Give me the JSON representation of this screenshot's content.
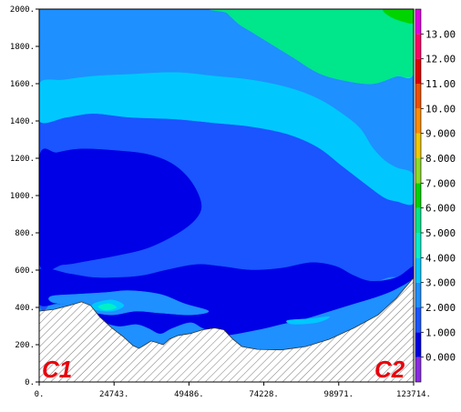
{
  "chart_data": {
    "type": "heatmap",
    "title": "",
    "xlabel": "",
    "ylabel": "",
    "xlim": [
      0,
      123714
    ],
    "ylim": [
      0,
      2000
    ],
    "x_ticks": [
      {
        "value": 0,
        "label": "0."
      },
      {
        "value": 24743,
        "label": "24743."
      },
      {
        "value": 49486,
        "label": "49486."
      },
      {
        "value": 74228,
        "label": "74228."
      },
      {
        "value": 98971,
        "label": "98971."
      },
      {
        "value": 123714,
        "label": "123714."
      }
    ],
    "y_ticks": [
      {
        "value": 0,
        "label": "0."
      },
      {
        "value": 200,
        "label": "200."
      },
      {
        "value": 400,
        "label": "400."
      },
      {
        "value": 600,
        "label": "600."
      },
      {
        "value": 800,
        "label": "800."
      },
      {
        "value": 1000,
        "label": "1000."
      },
      {
        "value": 1200,
        "label": "1200."
      },
      {
        "value": 1400,
        "label": "1400."
      },
      {
        "value": 1600,
        "label": "1600."
      },
      {
        "value": 1800,
        "label": "1800."
      },
      {
        "value": 2000,
        "label": "2000."
      }
    ],
    "colorbar": {
      "range": [
        -1,
        14
      ],
      "levels": [
        {
          "from": -1,
          "to": 0,
          "color": "#8a2be2"
        },
        {
          "from": 0,
          "to": 1,
          "color": "#0000e6"
        },
        {
          "from": 1,
          "to": 2,
          "color": "#1a55ff"
        },
        {
          "from": 2,
          "to": 3,
          "color": "#1e90ff"
        },
        {
          "from": 3,
          "to": 4,
          "color": "#00c8ff"
        },
        {
          "from": 4,
          "to": 5,
          "color": "#00f0c8"
        },
        {
          "from": 5,
          "to": 6,
          "color": "#00e68a"
        },
        {
          "from": 6,
          "to": 7,
          "color": "#00d400"
        },
        {
          "from": 7,
          "to": 8,
          "color": "#8cdc28"
        },
        {
          "from": 8,
          "to": 9,
          "color": "#f0c800"
        },
        {
          "from": 9,
          "to": 10,
          "color": "#ff8c00"
        },
        {
          "from": 10,
          "to": 11,
          "color": "#f05000"
        },
        {
          "from": 11,
          "to": 12,
          "color": "#e00000"
        },
        {
          "from": 12,
          "to": 13,
          "color": "#ff0066"
        },
        {
          "from": 13,
          "to": 14,
          "color": "#e000e0"
        }
      ],
      "tick_labels": [
        {
          "value": 0,
          "label": "0.000"
        },
        {
          "value": 1,
          "label": "1.000"
        },
        {
          "value": 2,
          "label": "2.000"
        },
        {
          "value": 3,
          "label": "3.000"
        },
        {
          "value": 4,
          "label": "4.000"
        },
        {
          "value": 5,
          "label": "5.000"
        },
        {
          "value": 6,
          "label": "6.000"
        },
        {
          "value": 7,
          "label": "7.000"
        },
        {
          "value": 8,
          "label": "8.000"
        },
        {
          "value": 9,
          "label": "9.000"
        },
        {
          "value": 10,
          "label": "10.00"
        },
        {
          "value": 11,
          "label": "11.00"
        },
        {
          "value": 12,
          "label": "12.00"
        },
        {
          "value": 13,
          "label": "13.00"
        }
      ]
    },
    "fill_bands": [
      {
        "name": "level-1-2",
        "color": "#1a55ff",
        "points": [
          [
            0,
            1400
          ],
          [
            9000,
            1420
          ],
          [
            18000,
            1440
          ],
          [
            30000,
            1420
          ],
          [
            45000,
            1410
          ],
          [
            58000,
            1390
          ],
          [
            70000,
            1370
          ],
          [
            82000,
            1330
          ],
          [
            92000,
            1260
          ],
          [
            100000,
            1160
          ],
          [
            108000,
            1060
          ],
          [
            114000,
            990
          ],
          [
            118000,
            970
          ],
          [
            123714,
            960
          ],
          [
            123714,
            600
          ],
          [
            115000,
            560
          ],
          [
            105000,
            500
          ],
          [
            95000,
            460
          ],
          [
            85000,
            440
          ],
          [
            75000,
            400
          ],
          [
            65000,
            380
          ],
          [
            58000,
            400
          ],
          [
            50000,
            420
          ],
          [
            45000,
            450
          ],
          [
            40000,
            440
          ],
          [
            35000,
            420
          ],
          [
            30000,
            400
          ],
          [
            25000,
            420
          ],
          [
            20000,
            440
          ],
          [
            15000,
            450
          ],
          [
            10000,
            440
          ],
          [
            5000,
            450
          ],
          [
            0,
            450
          ]
        ]
      },
      {
        "name": "level-3-4",
        "color": "#00c8ff",
        "points": [
          [
            0,
            1600
          ],
          [
            8000,
            1620
          ],
          [
            18000,
            1640
          ],
          [
            30000,
            1650
          ],
          [
            45000,
            1660
          ],
          [
            58000,
            1640
          ],
          [
            70000,
            1620
          ],
          [
            82000,
            1580
          ],
          [
            92000,
            1520
          ],
          [
            100000,
            1440
          ],
          [
            106000,
            1360
          ],
          [
            110000,
            1260
          ],
          [
            114000,
            1190
          ],
          [
            118000,
            1150
          ],
          [
            123714,
            1110
          ],
          [
            123714,
            960
          ],
          [
            118000,
            970
          ],
          [
            114000,
            990
          ],
          [
            108000,
            1060
          ],
          [
            100000,
            1160
          ],
          [
            92000,
            1260
          ],
          [
            82000,
            1330
          ],
          [
            70000,
            1370
          ],
          [
            58000,
            1390
          ],
          [
            45000,
            1410
          ],
          [
            30000,
            1420
          ],
          [
            18000,
            1440
          ],
          [
            9000,
            1420
          ],
          [
            0,
            1400
          ]
        ]
      },
      {
        "name": "level-4-5",
        "color": "#00f0c8",
        "points": [
          [
            0,
            2000
          ],
          [
            123714,
            2000
          ],
          [
            123714,
            1660
          ],
          [
            118000,
            1640
          ],
          [
            110000,
            1600
          ],
          [
            100000,
            1620
          ],
          [
            92000,
            1660
          ],
          [
            84000,
            1740
          ],
          [
            76000,
            1820
          ],
          [
            70000,
            1880
          ],
          [
            66000,
            1920
          ],
          [
            62000,
            1980
          ],
          [
            60000,
            2000
          ],
          [
            0,
            2000
          ]
        ]
      },
      {
        "name": "level-5-6",
        "color": "#00e68a",
        "points": [
          [
            60000,
            2000
          ],
          [
            62000,
            1980
          ],
          [
            66000,
            1920
          ],
          [
            70000,
            1880
          ],
          [
            76000,
            1820
          ],
          [
            84000,
            1740
          ],
          [
            92000,
            1660
          ],
          [
            100000,
            1620
          ],
          [
            110000,
            1600
          ],
          [
            118000,
            1640
          ],
          [
            123714,
            1660
          ],
          [
            123714,
            1930
          ],
          [
            121000,
            1930
          ],
          [
            116000,
            1960
          ],
          [
            114000,
            2000
          ]
        ]
      },
      {
        "name": "level-6-7",
        "color": "#00d400",
        "points": [
          [
            114000,
            2000
          ],
          [
            116000,
            1960
          ],
          [
            121000,
            1930
          ],
          [
            123714,
            1930
          ],
          [
            123714,
            2000
          ]
        ]
      },
      {
        "name": "core-level-0-1",
        "color": "#0000e6",
        "points": [
          [
            0,
            1200
          ],
          [
            6000,
            1230
          ],
          [
            14000,
            1250
          ],
          [
            26000,
            1240
          ],
          [
            36000,
            1220
          ],
          [
            44000,
            1170
          ],
          [
            50000,
            1080
          ],
          [
            53500,
            960
          ],
          [
            52000,
            880
          ],
          [
            46000,
            800
          ],
          [
            36000,
            720
          ],
          [
            26000,
            680
          ],
          [
            16000,
            650
          ],
          [
            8000,
            630
          ],
          [
            0,
            640
          ]
        ]
      },
      {
        "name": "lower-level-0-1",
        "color": "#0000e6",
        "points": [
          [
            0,
            600
          ],
          [
            10000,
            580
          ],
          [
            18000,
            560
          ],
          [
            26000,
            560
          ],
          [
            34000,
            570
          ],
          [
            42000,
            600
          ],
          [
            52000,
            630
          ],
          [
            60000,
            620
          ],
          [
            70000,
            600
          ],
          [
            80000,
            610
          ],
          [
            90000,
            640
          ],
          [
            98000,
            620
          ],
          [
            104000,
            570
          ],
          [
            110000,
            540
          ],
          [
            118000,
            560
          ],
          [
            123714,
            620
          ],
          [
            123714,
            560
          ],
          [
            118000,
            500
          ],
          [
            112000,
            460
          ],
          [
            104000,
            420
          ],
          [
            96000,
            380
          ],
          [
            88000,
            340
          ],
          [
            80000,
            310
          ],
          [
            72000,
            280
          ],
          [
            60000,
            250
          ],
          [
            54000,
            290
          ],
          [
            50000,
            320
          ],
          [
            44000,
            290
          ],
          [
            40000,
            260
          ],
          [
            36000,
            290
          ],
          [
            32000,
            310
          ],
          [
            26000,
            300
          ],
          [
            20000,
            330
          ],
          [
            14000,
            380
          ],
          [
            10000,
            410
          ],
          [
            6000,
            420
          ],
          [
            0,
            420
          ]
        ]
      },
      {
        "name": "pocket-level-2-3",
        "color": "#1e90ff",
        "points": [
          [
            4000,
            460
          ],
          [
            12000,
            470
          ],
          [
            22000,
            480
          ],
          [
            30000,
            490
          ],
          [
            40000,
            470
          ],
          [
            48000,
            420
          ],
          [
            56000,
            380
          ],
          [
            50000,
            360
          ],
          [
            40000,
            370
          ],
          [
            32000,
            380
          ],
          [
            24000,
            360
          ],
          [
            16000,
            380
          ],
          [
            10000,
            410
          ],
          [
            4000,
            430
          ]
        ]
      },
      {
        "name": "pocket-level-3-4",
        "color": "#00c8ff",
        "points": [
          [
            18000,
            420
          ],
          [
            24000,
            440
          ],
          [
            28000,
            410
          ],
          [
            24000,
            380
          ],
          [
            18000,
            390
          ]
        ]
      },
      {
        "name": "pocket-level-3-4-right",
        "color": "#00c8ff",
        "points": [
          [
            82000,
            330
          ],
          [
            90000,
            340
          ],
          [
            96000,
            350
          ],
          [
            92000,
            320
          ],
          [
            84000,
            310
          ]
        ]
      },
      {
        "name": "pocket-level-4-5",
        "color": "#00f0c8",
        "points": [
          [
            19500,
            405
          ],
          [
            23000,
            420
          ],
          [
            25500,
            400
          ],
          [
            22000,
            385
          ]
        ]
      }
    ],
    "terrain": [
      [
        0,
        380
      ],
      [
        5000,
        390
      ],
      [
        10000,
        410
      ],
      [
        14000,
        430
      ],
      [
        17000,
        410
      ],
      [
        20000,
        350
      ],
      [
        24000,
        290
      ],
      [
        28000,
        240
      ],
      [
        31000,
        195
      ],
      [
        33000,
        180
      ],
      [
        35000,
        200
      ],
      [
        37000,
        220
      ],
      [
        39000,
        210
      ],
      [
        41000,
        200
      ],
      [
        43000,
        230
      ],
      [
        46000,
        250
      ],
      [
        50000,
        260
      ],
      [
        54000,
        280
      ],
      [
        58000,
        290
      ],
      [
        61000,
        280
      ],
      [
        64000,
        230
      ],
      [
        67000,
        190
      ],
      [
        72000,
        175
      ],
      [
        80000,
        172
      ],
      [
        88000,
        190
      ],
      [
        96000,
        230
      ],
      [
        104000,
        290
      ],
      [
        112000,
        360
      ],
      [
        118000,
        450
      ],
      [
        123714,
        560
      ]
    ],
    "annotations": [
      {
        "text": "C1",
        "position": "bottom-left"
      },
      {
        "text": "C2",
        "position": "bottom-right"
      }
    ],
    "grid": false
  }
}
